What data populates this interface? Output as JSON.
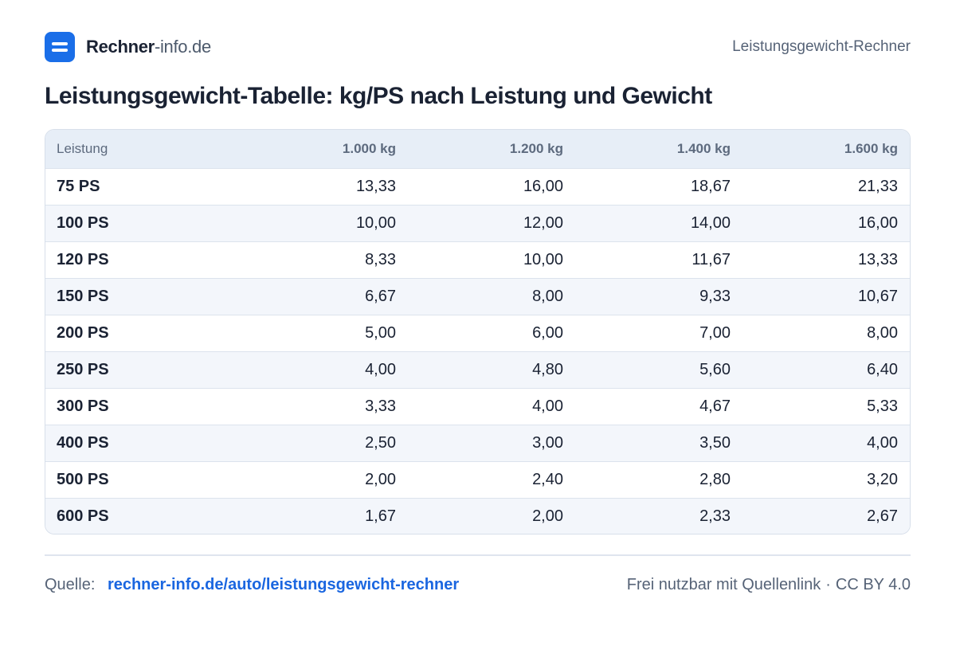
{
  "brand": {
    "name_bold": "Rechner",
    "name_light": "-info.de"
  },
  "header": {
    "right_label": "Leistungsgewicht-Rechner"
  },
  "title": "Leistungsgewicht-Tabelle: kg/PS nach Leistung und Gewicht",
  "table": {
    "headers": [
      "Leistung",
      "1.000 kg",
      "1.200 kg",
      "1.400 kg",
      "1.600 kg"
    ],
    "rows": [
      [
        "75 PS",
        "13,33",
        "16,00",
        "18,67",
        "21,33"
      ],
      [
        "100 PS",
        "10,00",
        "12,00",
        "14,00",
        "16,00"
      ],
      [
        "120 PS",
        "8,33",
        "10,00",
        "11,67",
        "13,33"
      ],
      [
        "150 PS",
        "6,67",
        "8,00",
        "9,33",
        "10,67"
      ],
      [
        "200 PS",
        "5,00",
        "6,00",
        "7,00",
        "8,00"
      ],
      [
        "250 PS",
        "4,00",
        "4,80",
        "5,60",
        "6,40"
      ],
      [
        "300 PS",
        "3,33",
        "4,00",
        "4,67",
        "5,33"
      ],
      [
        "400 PS",
        "2,50",
        "3,00",
        "3,50",
        "4,00"
      ],
      [
        "500 PS",
        "2,00",
        "2,40",
        "2,80",
        "3,20"
      ],
      [
        "600 PS",
        "1,67",
        "2,00",
        "2,33",
        "2,67"
      ]
    ]
  },
  "footer": {
    "source_label": "Quelle:",
    "source_link": "rechner-info.de/auto/leistungsgewicht-rechner",
    "license_text": "Frei nutzbar mit Quellenlink",
    "separator": "·",
    "license": "CC BY 4.0"
  }
}
